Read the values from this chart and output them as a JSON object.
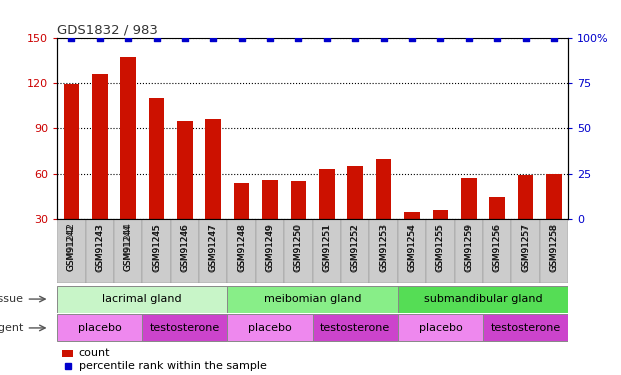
{
  "title": "GDS1832 / 983",
  "samples": [
    "GSM91242",
    "GSM91243",
    "GSM91244",
    "GSM91245",
    "GSM91246",
    "GSM91247",
    "GSM91248",
    "GSM91249",
    "GSM91250",
    "GSM91251",
    "GSM91252",
    "GSM91253",
    "GSM91254",
    "GSM91255",
    "GSM91259",
    "GSM91256",
    "GSM91257",
    "GSM91258"
  ],
  "counts": [
    119,
    126,
    137,
    110,
    95,
    96,
    54,
    56,
    55,
    63,
    65,
    70,
    35,
    36,
    57,
    45,
    59,
    60
  ],
  "percentiles": [
    100,
    100,
    100,
    100,
    100,
    100,
    100,
    100,
    100,
    100,
    100,
    100,
    100,
    100,
    100,
    100,
    100,
    100
  ],
  "ylim_left": [
    30,
    150
  ],
  "ylim_right": [
    0,
    100
  ],
  "yticks_left": [
    30,
    60,
    90,
    120,
    150
  ],
  "yticks_right": [
    0,
    25,
    50,
    75,
    100
  ],
  "bar_color": "#cc1100",
  "percentile_color": "#0000cc",
  "bar_width": 0.55,
  "tissue_groups": [
    {
      "label": "lacrimal gland",
      "start": 0,
      "end": 6
    },
    {
      "label": "meibomian gland",
      "start": 6,
      "end": 12
    },
    {
      "label": "submandibular gland",
      "start": 12,
      "end": 18
    }
  ],
  "tissue_colors": [
    "#c8f5c8",
    "#88ee88",
    "#55dd55"
  ],
  "agent_groups": [
    {
      "label": "placebo",
      "start": 0,
      "end": 3
    },
    {
      "label": "testosterone",
      "start": 3,
      "end": 6
    },
    {
      "label": "placebo",
      "start": 6,
      "end": 9
    },
    {
      "label": "testosterone",
      "start": 9,
      "end": 12
    },
    {
      "label": "placebo",
      "start": 12,
      "end": 15
    },
    {
      "label": "testosterone",
      "start": 15,
      "end": 18
    }
  ],
  "agent_colors_map": {
    "placebo": "#ee88ee",
    "testosterone": "#cc44cc"
  },
  "tissue_label": "tissue",
  "agent_label": "agent",
  "legend_count_label": "count",
  "legend_percentile_label": "percentile rank within the sample",
  "background_color": "#ffffff",
  "xtick_bg_color": "#cccccc",
  "grid_color": "#333333",
  "tick_label_color_left": "#cc0000",
  "tick_label_color_right": "#0000cc"
}
